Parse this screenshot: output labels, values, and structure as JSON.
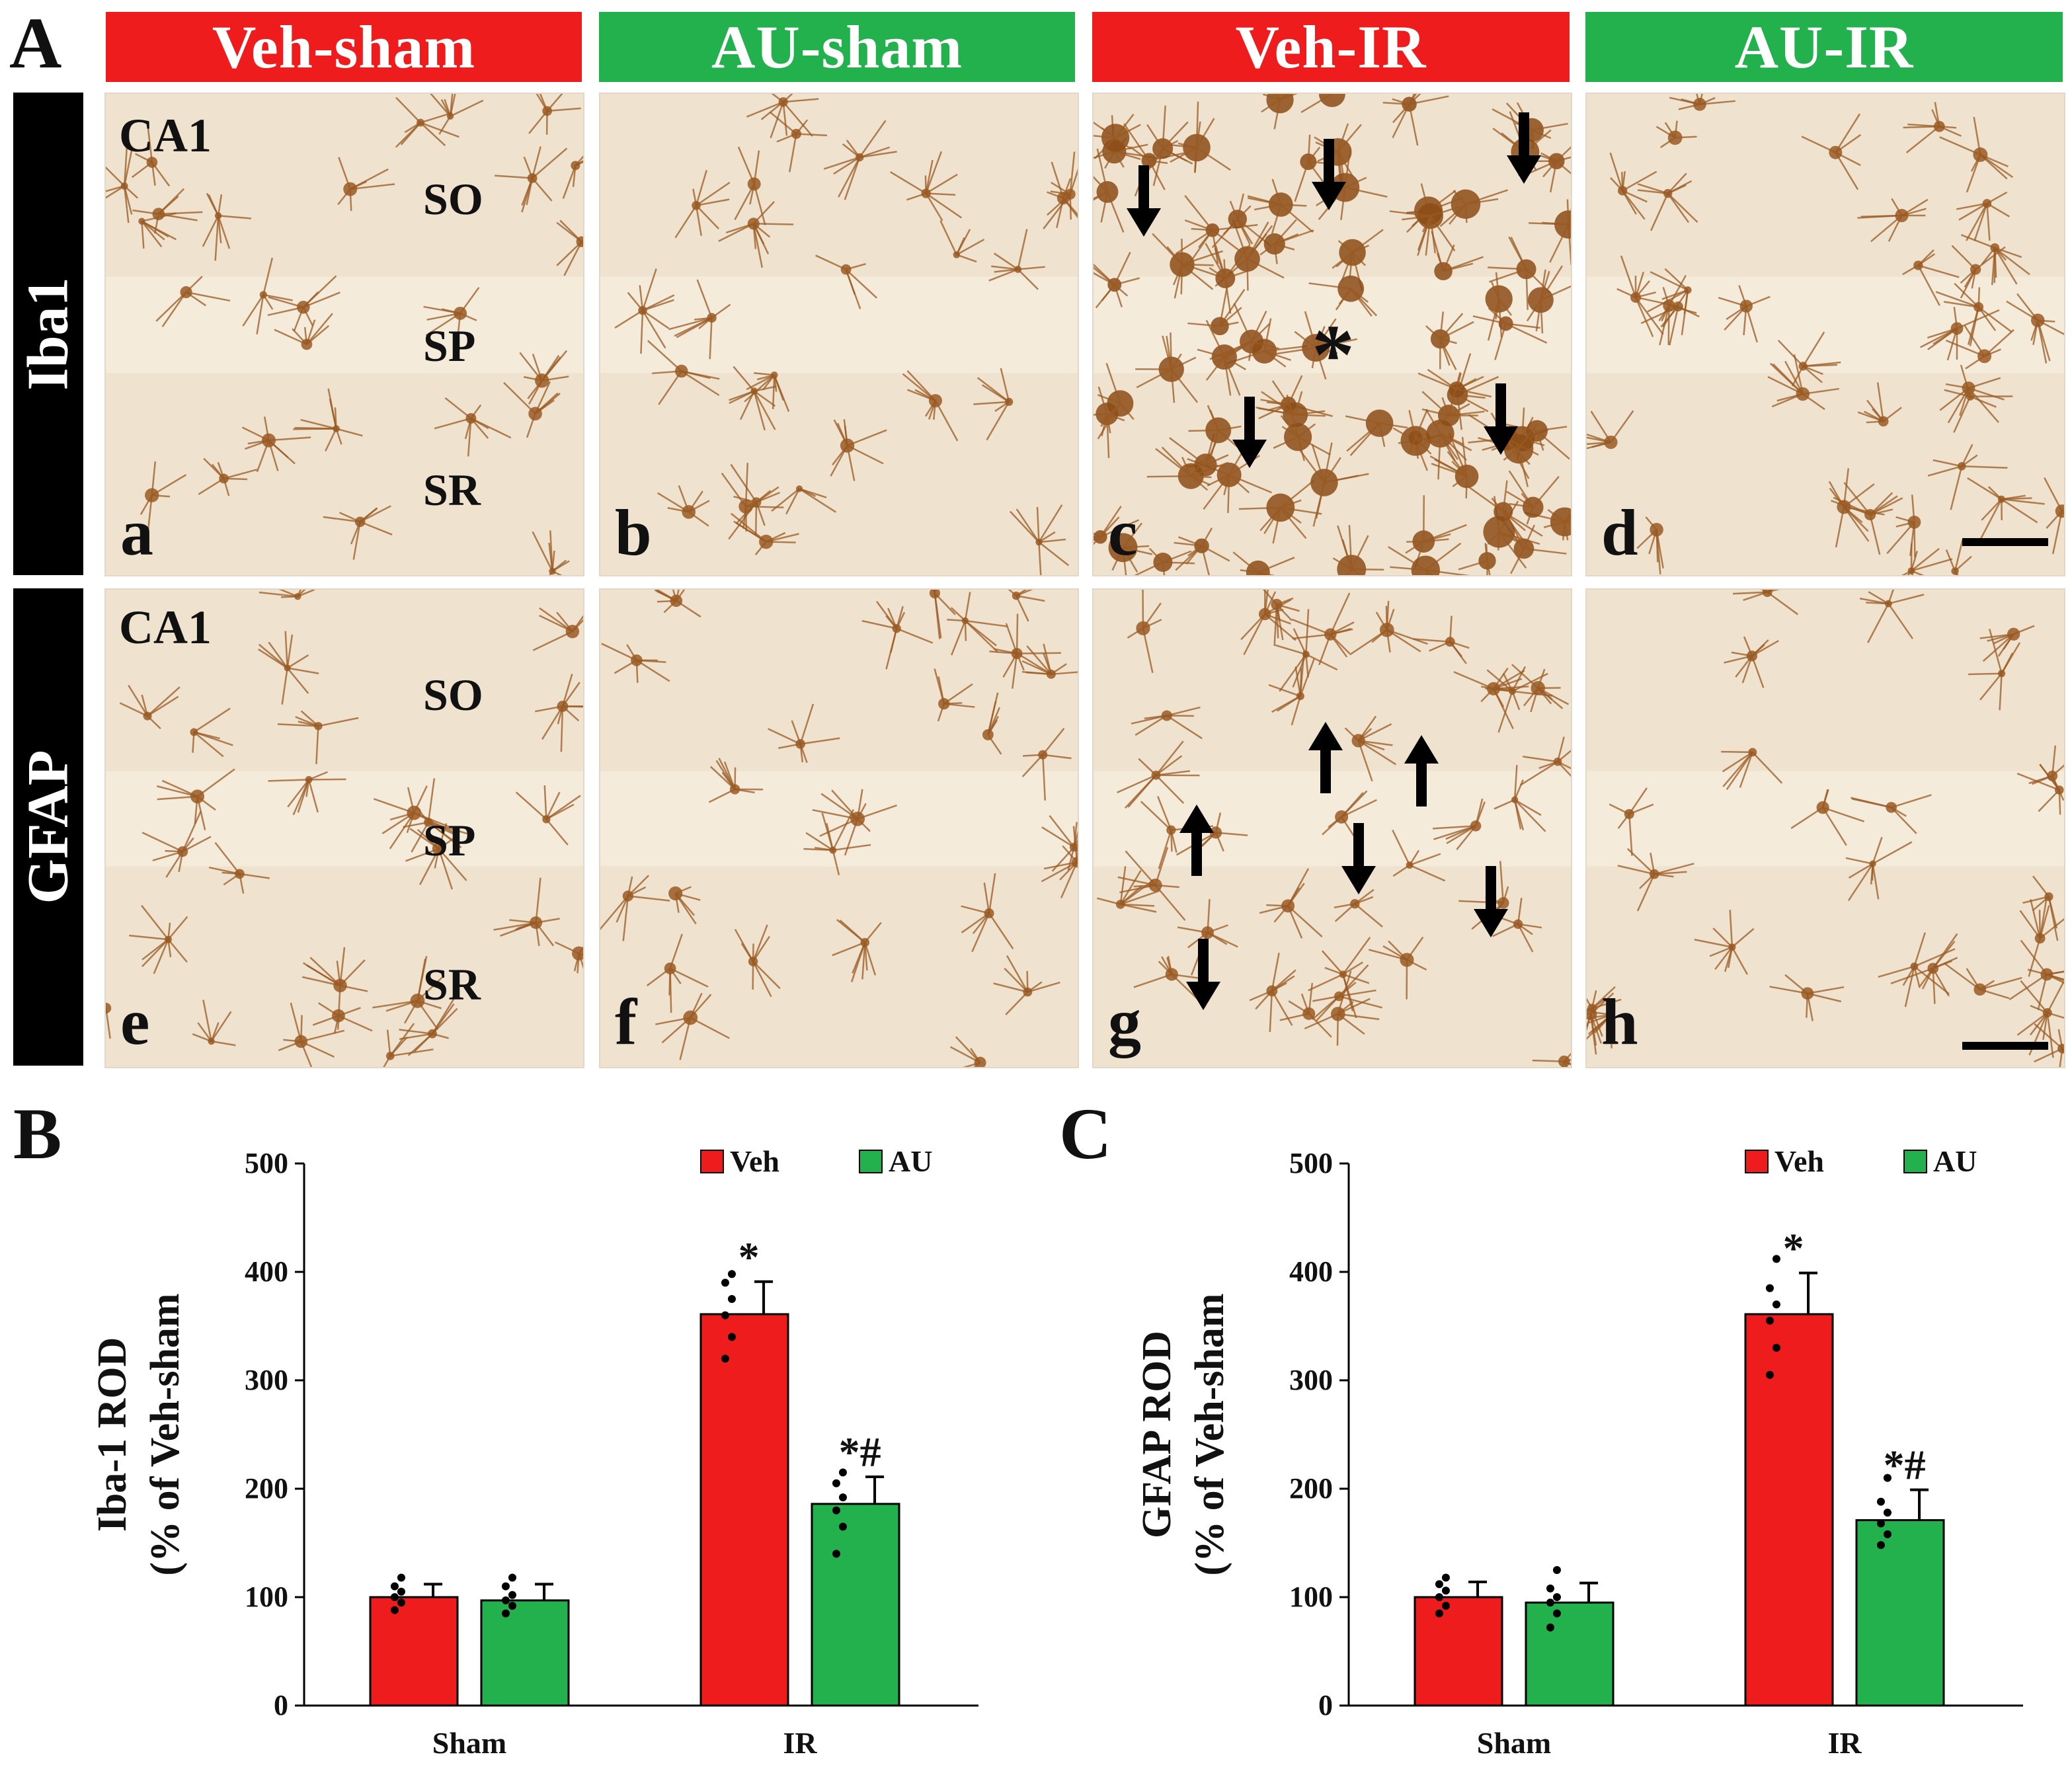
{
  "figure": {
    "panel_letters": [
      "A",
      "B",
      "C"
    ],
    "group_headers": [
      {
        "label": "Veh-sham",
        "color": "#ee1c1c"
      },
      {
        "label": "AU-sham",
        "color": "#22b14c"
      },
      {
        "label": "Veh-IR",
        "color": "#ee1c1c"
      },
      {
        "label": "AU-IR",
        "color": "#22b14c"
      }
    ],
    "row_labels": [
      "Iba1",
      "GFAP"
    ],
    "region_label": "CA1",
    "layer_labels": [
      "SO",
      "SP",
      "SR"
    ],
    "asterisk_marker": "*",
    "sublabels": [
      "a",
      "b",
      "c",
      "d",
      "e",
      "f",
      "g",
      "h"
    ],
    "stain_colors": {
      "background": "#efe3cf",
      "cell": "#9a5a23",
      "dense": "#8c4c16"
    }
  },
  "chart_data": [
    {
      "type": "bar",
      "panel": "B",
      "categories": [
        "Sham",
        "IR"
      ],
      "series": [
        {
          "name": "Veh",
          "color": "#ee1c1c",
          "values": [
            100,
            361
          ],
          "errors": [
            12,
            30
          ],
          "points": [
            [
              88,
              95,
              100,
              105,
              110,
              118
            ],
            [
              320,
              340,
              360,
              375,
              390,
              398
            ]
          ]
        },
        {
          "name": "AU",
          "color": "#22b14c",
          "values": [
            97,
            186
          ],
          "errors": [
            15,
            25
          ],
          "points": [
            [
              85,
              92,
              97,
              102,
              110,
              118
            ],
            [
              140,
              165,
              180,
              192,
              205,
              215
            ]
          ]
        }
      ],
      "ylabel": "Iba-1 ROD",
      "ylabel2": "(% of Veh-sham",
      "ylim": [
        0,
        500
      ],
      "yticks": [
        0,
        100,
        200,
        300,
        400,
        500
      ],
      "annotations": [
        {
          "series": 0,
          "category": 1,
          "text": "*"
        },
        {
          "series": 1,
          "category": 1,
          "text": "*#"
        }
      ],
      "legend_position": "top-right",
      "grid": false
    },
    {
      "type": "bar",
      "panel": "C",
      "categories": [
        "Sham",
        "IR"
      ],
      "series": [
        {
          "name": "Veh",
          "color": "#ee1c1c",
          "values": [
            100,
            361
          ],
          "errors": [
            14,
            38
          ],
          "points": [
            [
              85,
              92,
              100,
              106,
              112,
              118
            ],
            [
              305,
              330,
              355,
              370,
              385,
              412
            ]
          ]
        },
        {
          "name": "AU",
          "color": "#22b14c",
          "values": [
            95,
            171
          ],
          "errors": [
            18,
            28
          ],
          "points": [
            [
              72,
              85,
              95,
              100,
              108,
              125
            ],
            [
              148,
              158,
              168,
              178,
              188,
              210
            ]
          ]
        }
      ],
      "ylabel": "GFAP ROD",
      "ylabel2": "(% of Veh-sham",
      "ylim": [
        0,
        500
      ],
      "yticks": [
        0,
        100,
        200,
        300,
        400,
        500
      ],
      "annotations": [
        {
          "series": 0,
          "category": 1,
          "text": "*"
        },
        {
          "series": 1,
          "category": 1,
          "text": "*#"
        }
      ],
      "legend_position": "top-right",
      "grid": false
    }
  ]
}
